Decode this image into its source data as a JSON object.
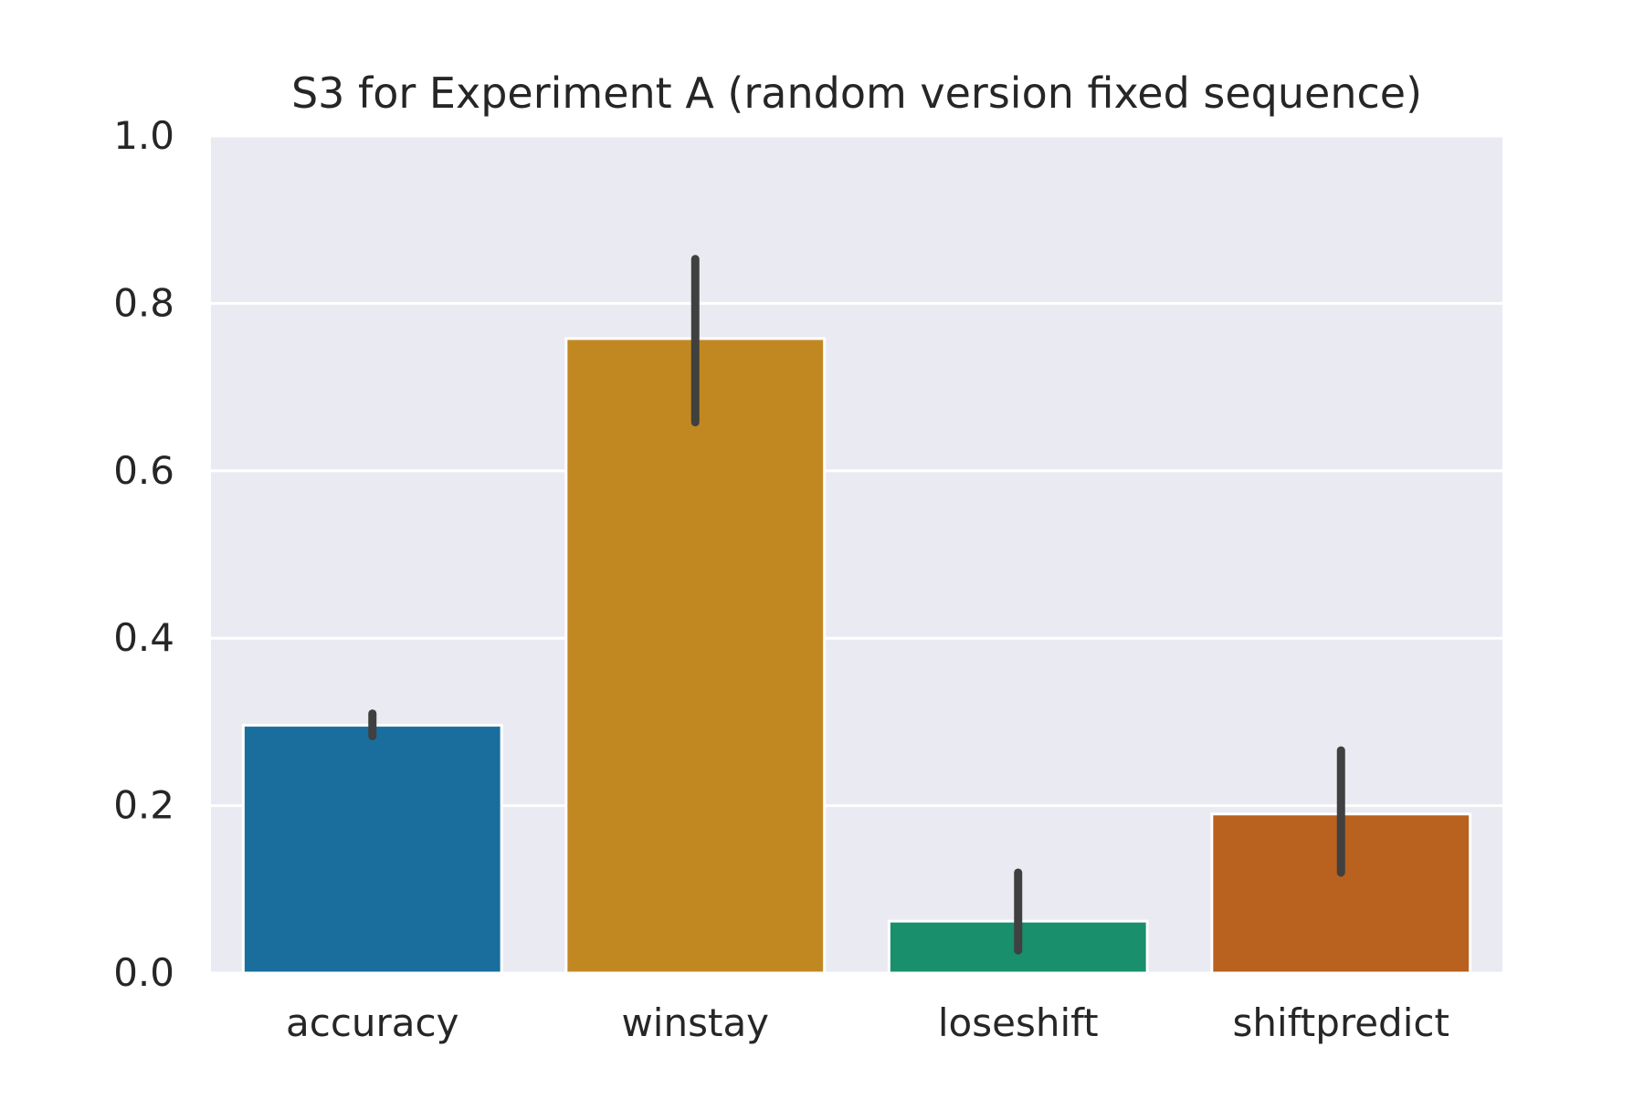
{
  "chart_data": {
    "type": "bar",
    "title": "S3 for Experiment A (random version fixed sequence)",
    "xlabel": "",
    "ylabel": "",
    "categories": [
      "accuracy",
      "winstay",
      "loseshift",
      "shiftpredict"
    ],
    "values": [
      0.296,
      0.758,
      0.062,
      0.19
    ],
    "error_bars": [
      [
        0.283,
        0.31
      ],
      [
        0.658,
        0.853
      ],
      [
        0.027,
        0.12
      ],
      [
        0.12,
        0.266
      ]
    ],
    "colors": [
      "#1a6e9e",
      "#c18821",
      "#198f6c",
      "#b9611e"
    ],
    "error_bar_color": "#404040",
    "background_color": "#eaeaf2",
    "grid_color": "#ffffff",
    "ylim": [
      0,
      1.0
    ],
    "yticks": [
      0.0,
      0.2,
      0.4,
      0.6,
      0.8,
      1.0
    ],
    "ytick_labels": [
      "0.0",
      "0.2",
      "0.4",
      "0.6",
      "0.8",
      "1.0"
    ],
    "grid": true,
    "legend": "none"
  }
}
